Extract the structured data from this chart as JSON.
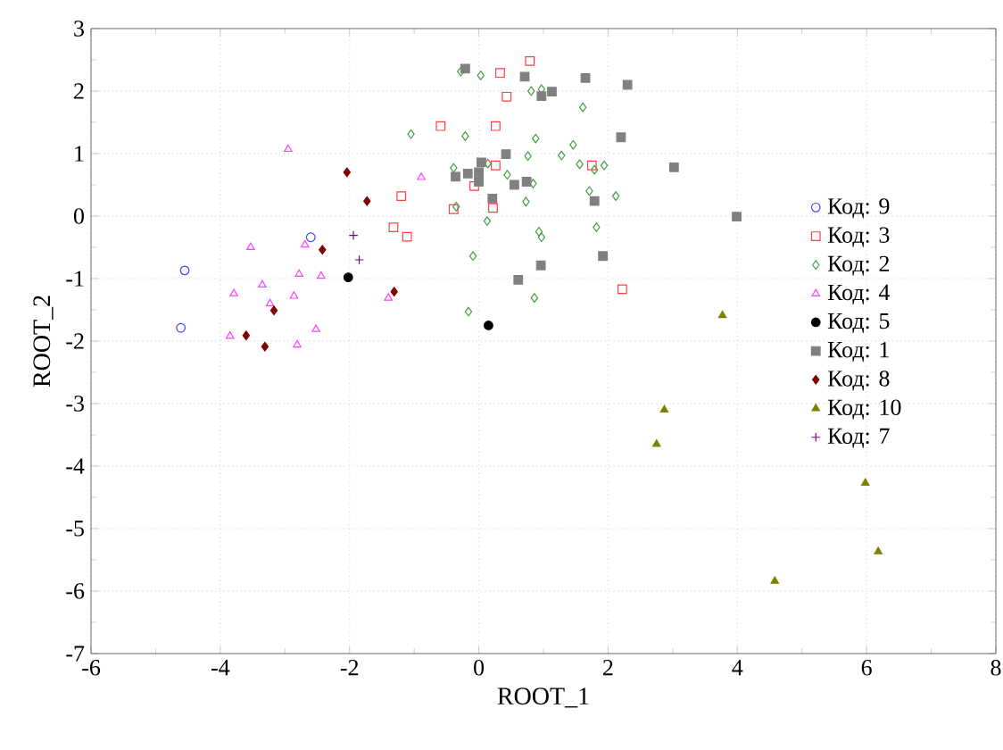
{
  "chart_data": {
    "type": "scatter",
    "xlabel": "ROOT_1",
    "ylabel": "ROOT_2",
    "xlim": [
      -6,
      8
    ],
    "ylim": [
      -7,
      3
    ],
    "xticks": [
      -6,
      -4,
      -2,
      0,
      2,
      4,
      6,
      8
    ],
    "yticks": [
      -7,
      -6,
      -5,
      -4,
      -3,
      -2,
      -1,
      0,
      1,
      2,
      3
    ],
    "grid": true,
    "legend": "right",
    "series": [
      {
        "name": "Код: 9",
        "color": "#4040ff",
        "marker": "circle",
        "x": [
          -4.55,
          -4.61,
          -2.6
        ],
        "values": [
          -0.87,
          -1.79,
          -0.34
        ]
      },
      {
        "name": "Код: 3",
        "color": "#ff4040",
        "marker": "square",
        "x": [
          0.79,
          0.33,
          0.43,
          -0.59,
          0.26,
          0.26,
          -0.07,
          -1.2,
          -0.39,
          0.22,
          -1.32,
          -1.11,
          1.75,
          2.22
        ],
        "values": [
          2.48,
          2.29,
          1.91,
          1.44,
          1.44,
          0.81,
          0.48,
          0.32,
          0.11,
          0.13,
          -0.18,
          -0.33,
          0.81,
          -1.17
        ]
      },
      {
        "name": "Код: 2",
        "color": "#40a040",
        "marker": "diamond",
        "x": [
          -0.28,
          0.03,
          0.81,
          0.97,
          -1.05,
          -0.21,
          0.88,
          1.46,
          1.61,
          1.28,
          0.76,
          -0.39,
          0.14,
          0.44,
          0.84,
          1.56,
          1.79,
          1.94,
          1.71,
          2.12,
          -0.35,
          0.73,
          0.13,
          0.93,
          0.97,
          1.82,
          -0.09,
          0.86,
          -0.16
        ],
        "values": [
          2.31,
          2.25,
          2.0,
          2.03,
          1.31,
          1.28,
          1.24,
          1.14,
          1.74,
          0.97,
          0.96,
          0.77,
          0.84,
          0.66,
          0.52,
          0.83,
          0.74,
          0.81,
          0.4,
          0.32,
          0.15,
          0.23,
          -0.08,
          -0.25,
          -0.34,
          -0.18,
          -0.64,
          -1.31,
          -1.53
        ]
      },
      {
        "name": "Код: 4",
        "color": "#ff40ff",
        "marker": "triangle",
        "x": [
          -2.95,
          -0.89,
          -3.53,
          -2.69,
          -2.78,
          -2.44,
          -3.35,
          -3.79,
          -2.86,
          -3.23,
          -1.4,
          -2.52,
          -3.85,
          -2.81
        ],
        "values": [
          1.07,
          0.62,
          -0.5,
          -0.46,
          -0.93,
          -0.96,
          -1.1,
          -1.24,
          -1.28,
          -1.4,
          -1.31,
          -1.81,
          -1.92,
          -2.06
        ]
      },
      {
        "name": "Код: 5",
        "color": "#000000",
        "marker": "circle",
        "x": [
          -2.02,
          0.15
        ],
        "values": [
          -0.98,
          -1.75
        ]
      },
      {
        "name": "Код: 1",
        "color": "#808080",
        "marker": "square",
        "x": [
          -0.21,
          0.71,
          1.65,
          0.97,
          1.13,
          2.3,
          2.2,
          0.42,
          0.04,
          -0.17,
          -0.36,
          0.0,
          0.0,
          0.55,
          0.74,
          0.21,
          1.79,
          3.02,
          3.99,
          1.92,
          0.96,
          0.61
        ],
        "values": [
          2.36,
          2.23,
          2.21,
          1.92,
          1.99,
          2.1,
          1.26,
          0.99,
          0.86,
          0.68,
          0.63,
          0.7,
          0.55,
          0.5,
          0.55,
          0.28,
          0.24,
          0.78,
          -0.01,
          -0.64,
          -0.79,
          -1.02
        ]
      },
      {
        "name": "Код: 8",
        "color": "#800000",
        "marker": "diamond",
        "x": [
          -2.04,
          -1.73,
          -2.42,
          -1.31,
          -3.17,
          -3.6,
          -3.31
        ],
        "values": [
          0.7,
          0.24,
          -0.54,
          -1.21,
          -1.51,
          -1.91,
          -2.09
        ]
      },
      {
        "name": "Код: 10",
        "color": "#808000",
        "marker": "triangle",
        "x": [
          3.77,
          2.87,
          2.75,
          5.98,
          6.18,
          4.58
        ],
        "values": [
          -1.59,
          -3.1,
          -3.65,
          -4.27,
          -5.37,
          -5.84
        ]
      },
      {
        "name": "Код: 7",
        "color": "#800080",
        "marker": "cross",
        "x": [
          -1.94,
          -1.85
        ],
        "values": [
          -0.31,
          -0.7
        ]
      }
    ]
  }
}
